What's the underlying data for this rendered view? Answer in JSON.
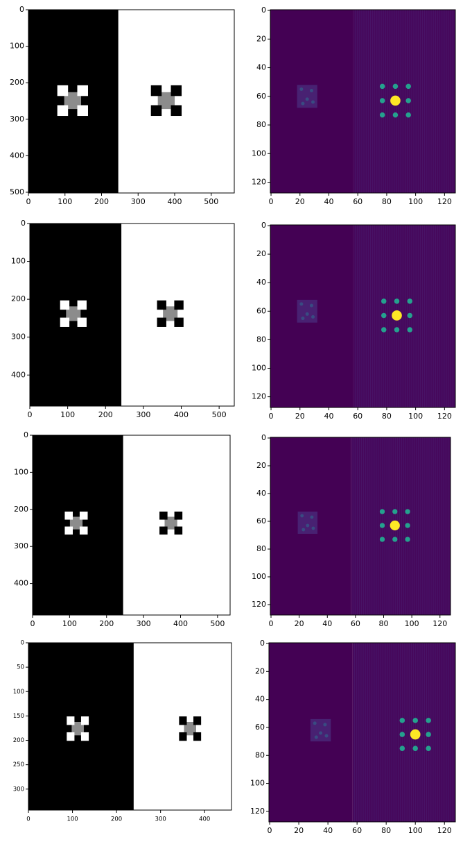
{
  "chart_data": [
    {
      "type": "image",
      "cmap": "gray",
      "xlim": [
        0,
        563
      ],
      "ylim": [
        502,
        0
      ],
      "xticks": [
        0,
        100,
        200,
        300,
        400,
        500
      ],
      "yticks": [
        0,
        100,
        200,
        300,
        400,
        500
      ]
    },
    {
      "type": "image",
      "cmap": "viridis",
      "xlim": [
        -0.5,
        127.5
      ],
      "ylim": [
        127.5,
        -0.5
      ],
      "xticks": [
        0,
        20,
        40,
        60,
        80,
        100,
        120
      ],
      "yticks": [
        0,
        20,
        40,
        60,
        80,
        100,
        120
      ]
    },
    {
      "type": "image",
      "cmap": "gray",
      "xlim": [
        0,
        540
      ],
      "ylim": [
        482,
        0
      ],
      "xticks": [
        0,
        100,
        200,
        300,
        400,
        500
      ],
      "yticks": [
        0,
        100,
        200,
        300,
        400
      ]
    },
    {
      "type": "image",
      "cmap": "viridis",
      "xlim": [
        -0.5,
        127.5
      ],
      "ylim": [
        127.5,
        -0.5
      ],
      "xticks": [
        0,
        20,
        40,
        60,
        80,
        100,
        120
      ],
      "yticks": [
        0,
        20,
        40,
        60,
        80,
        100,
        120
      ]
    },
    {
      "type": "image",
      "cmap": "gray",
      "xlim": [
        0,
        534
      ],
      "ylim": [
        485,
        0
      ],
      "xticks": [
        0,
        100,
        200,
        300,
        400,
        500
      ],
      "yticks": [
        0,
        100,
        200,
        300,
        400
      ]
    },
    {
      "type": "image",
      "cmap": "viridis",
      "xlim": [
        -0.5,
        127.5
      ],
      "ylim": [
        127.5,
        -0.5
      ],
      "xticks": [
        0,
        20,
        40,
        60,
        80,
        100,
        120
      ],
      "yticks": [
        0,
        20,
        40,
        60,
        80,
        100,
        120
      ]
    },
    {
      "type": "image",
      "cmap": "gray",
      "xlim": [
        0,
        461
      ],
      "ylim": [
        343,
        0
      ],
      "xticks": [
        0,
        100,
        200,
        300,
        400
      ],
      "yticks": [
        0,
        50,
        100,
        150,
        200,
        250,
        300
      ]
    },
    {
      "type": "image",
      "cmap": "viridis",
      "xlim": [
        -0.5,
        127.5
      ],
      "ylim": [
        127.5,
        -0.5
      ],
      "xticks": [
        0,
        20,
        40,
        60,
        80,
        100,
        120
      ],
      "yticks": [
        0,
        20,
        40,
        60,
        80,
        100,
        120
      ]
    }
  ]
}
